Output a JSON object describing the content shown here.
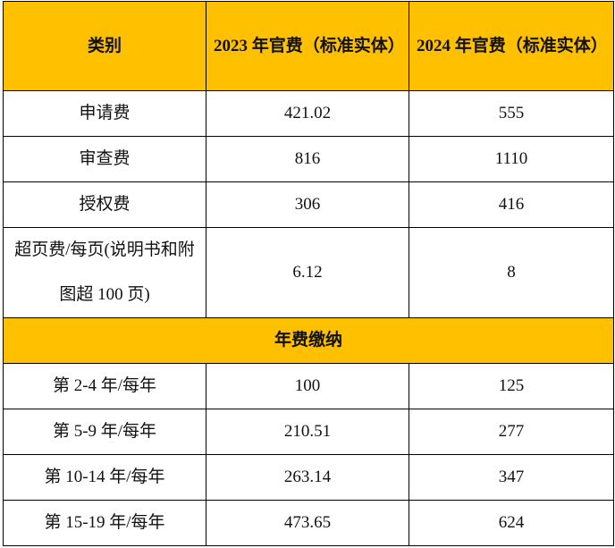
{
  "header": {
    "category": "类别",
    "col2023": "2023 年官费（标准实体）",
    "col2024": "2024 年官费（标准实体）"
  },
  "rows": [
    {
      "category": "申请费",
      "v2023": "421.02",
      "v2024": "555"
    },
    {
      "category": "审查费",
      "v2023": "816",
      "v2024": "1110"
    },
    {
      "category": "授权费",
      "v2023": "306",
      "v2024": "416"
    },
    {
      "category": "超页费/每页(说明书和附图超 100 页)",
      "v2023": "6.12",
      "v2024": "8"
    }
  ],
  "section": {
    "title": "年费缴纳"
  },
  "annual_rows": [
    {
      "category": "第 2-4 年/每年",
      "v2023": "100",
      "v2024": "125"
    },
    {
      "category": "第 5-9 年/每年",
      "v2023": "210.51",
      "v2024": "277"
    },
    {
      "category": "第 10-14 年/每年",
      "v2023": "263.14",
      "v2024": "347"
    },
    {
      "category": "第 15-19 年/每年",
      "v2023": "473.65",
      "v2024": "624"
    }
  ],
  "colors": {
    "header_bg": "#FFC000"
  }
}
